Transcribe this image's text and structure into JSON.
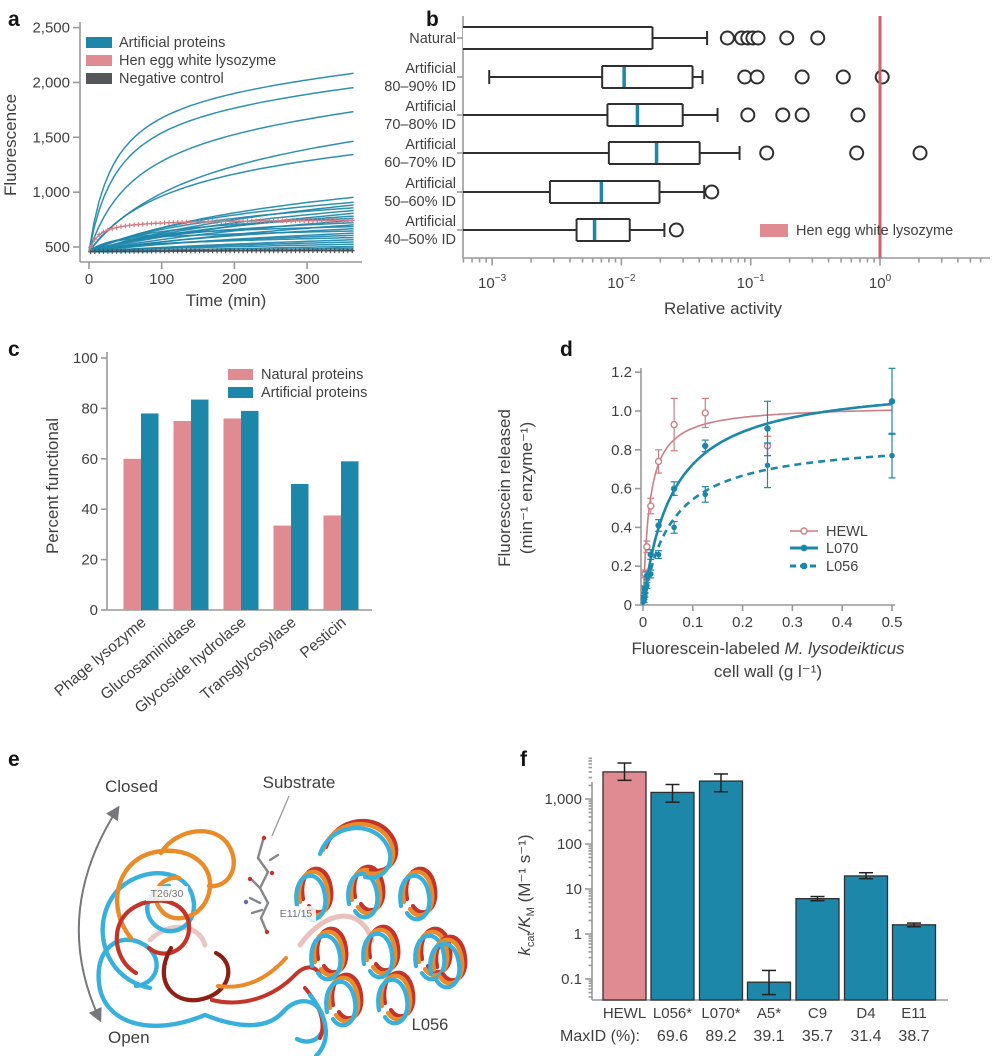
{
  "colors": {
    "teal": "#1d87aa",
    "pink": "#df8b91",
    "pink_line": "#cf7d85",
    "dark_gray": "#54565a",
    "neg_line": "#4a4c50",
    "red_line": "#d2626b",
    "text": "#3f3f3f",
    "spine": "#999999",
    "box_stroke": "#2f2f2f",
    "structure_cyan": "#38b0dc",
    "structure_orange": "#e98b28",
    "structure_red": "#c3342a",
    "structure_dark_red": "#8e1f14",
    "arrow_gray": "#76777a",
    "substrate_gray": "#85878c"
  },
  "panels": {
    "a": {
      "letter": "a"
    },
    "b": {
      "letter": "b"
    },
    "c": {
      "letter": "c"
    },
    "d": {
      "letter": "d",
      "ylabel_line1": "Fluorescein released",
      "ylabel_line2": "(min⁻¹ enzyme⁻¹)",
      "xlabel_plain": "Fluorescein-labeled ",
      "xlabel_italic": "M. lysodeikticus",
      "xlabel_line2": "cell wall (g l⁻¹)"
    },
    "e": {
      "letter": "e",
      "closed": "Closed",
      "open": "Open",
      "substrate": "Substrate",
      "residue1": "T26/30",
      "residue2": "E11/15",
      "structure_name": "L056"
    },
    "f": {
      "letter": "f",
      "ylabel_pre": "k",
      "ylabel_sub1": "cat",
      "ylabel_mid": "/K",
      "ylabel_sub2": "M",
      "ylabel_post": " (M⁻¹ s⁻¹)",
      "maxid_label": "MaxID (%):"
    }
  },
  "chart_data": [
    {
      "id": "a",
      "type": "line",
      "xlabel": "Time (min)",
      "ylabel": "Fluorescence",
      "xlim": [
        0,
        375
      ],
      "xticks": [
        0,
        100,
        200,
        300
      ],
      "ylim": [
        363,
        2550
      ],
      "yticks": [
        {
          "v": 500,
          "label": "500"
        },
        {
          "v": 1000,
          "label": "1,000"
        },
        {
          "v": 1500,
          "label": "1,500"
        },
        {
          "v": 2000,
          "label": "2,000"
        },
        {
          "v": 2500,
          "label": "2,500"
        }
      ],
      "legend": [
        "Artificial proteins",
        "Hen egg white lysozyme",
        "Negative control"
      ],
      "series": {
        "artificial": {
          "baseline": 458,
          "curves_final_k": [
            [
              2080,
              34
            ],
            [
              1950,
              40
            ],
            [
              1730,
              65
            ],
            [
              1460,
              150
            ],
            [
              1340,
              110
            ],
            [
              950,
              300
            ],
            [
              905,
              220
            ],
            [
              880,
              400
            ],
            [
              855,
              180
            ],
            [
              830,
              330
            ],
            [
              805,
              500
            ],
            [
              780,
              260
            ],
            [
              760,
              90
            ],
            [
              740,
              450
            ],
            [
              720,
              140
            ],
            [
              700,
              600
            ],
            [
              685,
              40
            ],
            [
              665,
              280
            ],
            [
              645,
              25
            ],
            [
              625,
              360
            ],
            [
              605,
              150
            ],
            [
              585,
              60
            ],
            [
              565,
              450
            ],
            [
              545,
              200
            ],
            [
              525,
              80
            ],
            [
              505,
              320
            ],
            [
              490,
              30
            ],
            [
              475,
              550
            ]
          ]
        },
        "hewl": {
          "baseline": 458,
          "final": 742,
          "k": 13
        },
        "negative": {
          "baseline": 457,
          "final": 466,
          "k": 80
        }
      }
    },
    {
      "id": "b",
      "type": "boxplot",
      "xlabel": "Relative activity",
      "xlim": [
        0.0006,
        6
      ],
      "xticks": [
        {
          "v": 0.001,
          "base": "10",
          "exp": "−3"
        },
        {
          "v": 0.01,
          "base": "10",
          "exp": "−2"
        },
        {
          "v": 0.1,
          "base": "10",
          "exp": "−1"
        },
        {
          "v": 1,
          "base": "10",
          "exp": "0"
        }
      ],
      "vline": 1.0,
      "legend": "Hen egg white lysozyme",
      "rows": [
        {
          "label": [
            "Natural"
          ],
          "q1": null,
          "median": null,
          "q3": 0.0174,
          "whisker_low": null,
          "whisker_high": 0.046,
          "outliers": [
            0.066,
            0.085,
            0.095,
            0.104,
            0.114,
            0.19,
            0.33
          ]
        },
        {
          "label": [
            "Artificial",
            "80–90% ID"
          ],
          "q1": 0.0071,
          "median": 0.0105,
          "q3": 0.0355,
          "whisker_low": 0.00095,
          "whisker_high": 0.0424,
          "outliers": [
            0.09,
            0.112,
            0.25,
            0.52,
            1.04
          ]
        },
        {
          "label": [
            "Artificial",
            "70–80% ID"
          ],
          "q1": 0.0078,
          "median": 0.0133,
          "q3": 0.0298,
          "whisker_low": null,
          "whisker_high": 0.0554,
          "outliers": [
            0.095,
            0.177,
            0.25,
            0.675
          ]
        },
        {
          "label": [
            "Artificial",
            "60–70% ID"
          ],
          "q1": 0.008,
          "median": 0.0187,
          "q3": 0.0403,
          "whisker_low": null,
          "whisker_high": 0.082,
          "outliers": [
            0.133,
            0.66,
            2.04
          ]
        },
        {
          "label": [
            "Artificial",
            "50–60% ID"
          ],
          "q1": 0.0028,
          "median": 0.007,
          "q3": 0.0197,
          "whisker_low": null,
          "whisker_high": 0.0437,
          "outliers": [
            0.05
          ]
        },
        {
          "label": [
            "Artificial",
            "40–50% ID"
          ],
          "q1": 0.0045,
          "median": 0.0062,
          "q3": 0.0116,
          "whisker_low": null,
          "whisker_high": 0.0215,
          "outliers": [
            0.0266
          ]
        }
      ]
    },
    {
      "id": "c",
      "type": "bar",
      "ylabel": "Percent functional",
      "ylim": [
        0,
        100
      ],
      "yticks": [
        0,
        20,
        40,
        60,
        80,
        100
      ],
      "categories": [
        "Phage lysozyme",
        "Glucosaminidase",
        "Glycoside hydrolase",
        "Transglycosylase",
        "Pesticin"
      ],
      "series": [
        {
          "name": "Natural proteins",
          "color_key": "pink",
          "values": [
            60,
            75,
            76,
            33.5,
            37.5
          ]
        },
        {
          "name": "Artificial proteins",
          "color_key": "teal",
          "values": [
            78,
            83.5,
            79,
            50,
            59
          ]
        }
      ]
    },
    {
      "id": "d",
      "type": "scatter",
      "xlim": [
        0,
        0.52
      ],
      "xticks": [
        {
          "v": 0,
          "label": "0"
        },
        {
          "v": 0.1,
          "label": "0.1"
        },
        {
          "v": 0.2,
          "label": "0.2"
        },
        {
          "v": 0.3,
          "label": "0.3"
        },
        {
          "v": 0.4,
          "label": "0.4"
        },
        {
          "v": 0.5,
          "label": "0.5"
        }
      ],
      "ylim": [
        0,
        1.25
      ],
      "yticks": [
        {
          "v": 0,
          "label": "0"
        },
        {
          "v": 0.2,
          "label": "0.2"
        },
        {
          "v": 0.4,
          "label": "0.4"
        },
        {
          "v": 0.6,
          "label": "0.6"
        },
        {
          "v": 0.8,
          "label": "0.8"
        },
        {
          "v": 1.0,
          "label": "1.0"
        },
        {
          "v": 1.2,
          "label": "1.2"
        }
      ],
      "series": [
        {
          "name": "HEWL",
          "color_key": "pink_line",
          "line": "solid",
          "marker": "open",
          "vmax": 1.03,
          "km": 0.013,
          "points": [
            [
              0.002,
              0.08,
              0.02
            ],
            [
              0.0039,
              0.16,
              0.02
            ],
            [
              0.0078,
              0.3,
              0.03
            ],
            [
              0.0156,
              0.51,
              0.04
            ],
            [
              0.0313,
              0.74,
              0.06
            ],
            [
              0.0625,
              0.93,
              0.135
            ],
            [
              0.125,
              0.99,
              0.075
            ],
            [
              0.25,
              0.82,
              0.05
            ]
          ]
        },
        {
          "name": "L070",
          "color_key": "teal",
          "line": "solid",
          "marker": "filled",
          "vmax": 1.16,
          "km": 0.06,
          "points": [
            [
              0.002,
              0.04,
              0.01
            ],
            [
              0.0039,
              0.08,
              0.015
            ],
            [
              0.0078,
              0.15,
              0.02
            ],
            [
              0.0156,
              0.26,
              0.025
            ],
            [
              0.0313,
              0.41,
              0.03
            ],
            [
              0.0625,
              0.6,
              0.035
            ],
            [
              0.125,
              0.82,
              0.03
            ],
            [
              0.25,
              0.91,
              0.14
            ],
            [
              0.5,
              1.05,
              0.17
            ]
          ]
        },
        {
          "name": "L056",
          "color_key": "teal",
          "line": "dashed",
          "marker": "filled",
          "vmax": 0.86,
          "km": 0.058,
          "points": [
            [
              0.002,
              0.02,
              0.008
            ],
            [
              0.0039,
              0.05,
              0.01
            ],
            [
              0.0078,
              0.1,
              0.015
            ],
            [
              0.0156,
              0.16,
              0.02
            ],
            [
              0.0313,
              0.26,
              0.02
            ],
            [
              0.0625,
              0.4,
              0.03
            ],
            [
              0.125,
              0.57,
              0.04
            ],
            [
              0.25,
              0.72,
              0.115
            ],
            [
              0.5,
              0.77,
              0.115
            ]
          ]
        }
      ]
    },
    {
      "id": "f",
      "type": "bar_log",
      "ylim": [
        0.034,
        8000
      ],
      "yticks": [
        {
          "v": 1000,
          "label": "1,000"
        },
        {
          "v": 100,
          "label": "100"
        },
        {
          "v": 10,
          "label": "10"
        },
        {
          "v": 1,
          "label": "1"
        },
        {
          "v": 0.1,
          "label": "0.1"
        }
      ],
      "categories": [
        "HEWL",
        "L056*",
        "L070*",
        "A5*",
        "C9",
        "D4",
        "E11"
      ],
      "values": [
        4000,
        1400,
        2500,
        0.085,
        6.1,
        19.5,
        1.6
      ],
      "err_low": [
        2600,
        850,
        1450,
        0.045,
        5.5,
        17,
        1.45
      ],
      "err_high": [
        6300,
        2100,
        3600,
        0.155,
        6.8,
        23,
        1.75
      ],
      "bar_colors": [
        "pink",
        "teal",
        "teal",
        "teal",
        "teal",
        "teal",
        "teal"
      ],
      "maxid": [
        "",
        "69.6",
        "89.2",
        "39.1",
        "35.7",
        "31.4",
        "38.7"
      ]
    }
  ]
}
